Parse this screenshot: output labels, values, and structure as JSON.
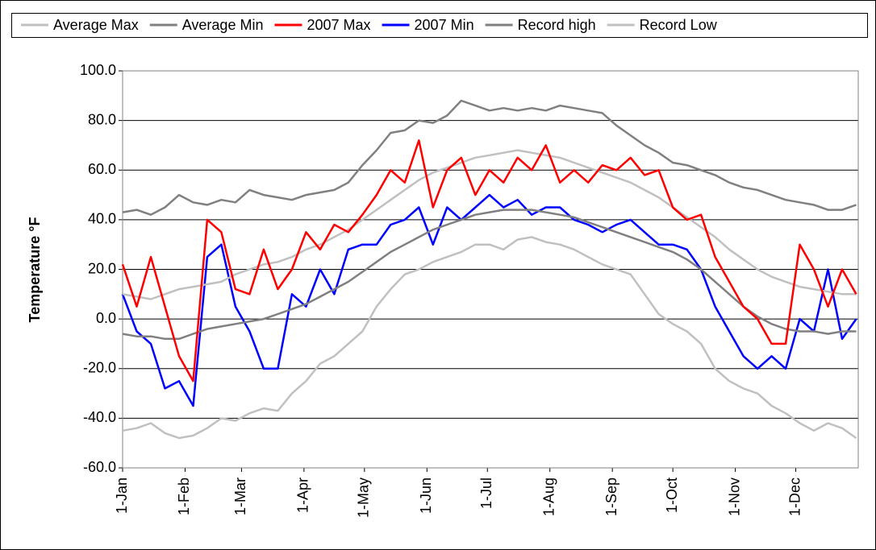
{
  "chart_data": {
    "type": "line",
    "y_label": "Temperature °F",
    "x": [
      0,
      7,
      14,
      21,
      28,
      35,
      42,
      49,
      56,
      63,
      70,
      77,
      84,
      91,
      98,
      105,
      112,
      119,
      126,
      133,
      140,
      147,
      154,
      161,
      168,
      175,
      182,
      189,
      196,
      203,
      210,
      217,
      224,
      231,
      238,
      245,
      252,
      259,
      266,
      273,
      280,
      287,
      294,
      301,
      308,
      315,
      322,
      329,
      336,
      343,
      350,
      357,
      364
    ],
    "xlim": [
      0,
      365
    ],
    "xticks": [
      {
        "value": 0,
        "label": "1-Jan"
      },
      {
        "value": 31,
        "label": "1-Feb"
      },
      {
        "value": 59,
        "label": "1-Mar"
      },
      {
        "value": 90,
        "label": "1-Apr"
      },
      {
        "value": 120,
        "label": "1-May"
      },
      {
        "value": 151,
        "label": "1-Jun"
      },
      {
        "value": 181,
        "label": "1-Jul"
      },
      {
        "value": 212,
        "label": "1-Aug"
      },
      {
        "value": 243,
        "label": "1-Sep"
      },
      {
        "value": 273,
        "label": "1-Oct"
      },
      {
        "value": 304,
        "label": "1-Nov"
      },
      {
        "value": 334,
        "label": "1-Dec"
      }
    ],
    "ylim": [
      -60,
      100
    ],
    "yticks": [
      {
        "value": -60,
        "label": "-60.0"
      },
      {
        "value": -40,
        "label": "-40.0"
      },
      {
        "value": -20,
        "label": "-20.0"
      },
      {
        "value": 0,
        "label": "0.0"
      },
      {
        "value": 20,
        "label": "20.0"
      },
      {
        "value": 40,
        "label": "40.0"
      },
      {
        "value": 60,
        "label": "60.0"
      },
      {
        "value": 80,
        "label": "80.0"
      },
      {
        "value": 100,
        "label": "100.0"
      }
    ],
    "grid": true,
    "legend": "top",
    "series": [
      {
        "name": "Average Max",
        "color": "#c0c0c0",
        "values": [
          10,
          9,
          8,
          10,
          12,
          13,
          14,
          15,
          18,
          20,
          22,
          23,
          25,
          28,
          30,
          33,
          36,
          40,
          44,
          48,
          52,
          56,
          59,
          61,
          63,
          65,
          66,
          67,
          68,
          67,
          66,
          65,
          63,
          61,
          59,
          57,
          55,
          52,
          49,
          45,
          41,
          37,
          33,
          28,
          24,
          20,
          17,
          15,
          13,
          12,
          11,
          10,
          10
        ]
      },
      {
        "name": "Average Min",
        "color": "#808080",
        "values": [
          -6,
          -7,
          -7,
          -8,
          -8,
          -6,
          -4,
          -3,
          -2,
          -1,
          0,
          2,
          4,
          6,
          9,
          12,
          15,
          19,
          23,
          27,
          30,
          33,
          36,
          38,
          40,
          42,
          43,
          44,
          44,
          44,
          43,
          42,
          41,
          39,
          37,
          35,
          33,
          31,
          29,
          27,
          24,
          20,
          15,
          10,
          5,
          1,
          -2,
          -4,
          -5,
          -5,
          -6,
          -5,
          -5
        ]
      },
      {
        "name": "2007 Max",
        "color": "#ff0000",
        "values": [
          22,
          5,
          25,
          5,
          -15,
          -25,
          40,
          35,
          12,
          10,
          28,
          12,
          20,
          35,
          28,
          38,
          35,
          42,
          50,
          60,
          55,
          72,
          45,
          60,
          65,
          50,
          60,
          55,
          65,
          60,
          70,
          55,
          60,
          55,
          62,
          60,
          65,
          58,
          60,
          45,
          40,
          42,
          25,
          15,
          5,
          0,
          -10,
          -10,
          30,
          20,
          5,
          20,
          10
        ]
      },
      {
        "name": "2007 Min",
        "color": "#0000ff",
        "values": [
          10,
          -5,
          -10,
          -28,
          -25,
          -35,
          25,
          30,
          5,
          -5,
          -20,
          -20,
          10,
          5,
          20,
          10,
          28,
          30,
          30,
          38,
          40,
          45,
          30,
          45,
          40,
          45,
          50,
          45,
          48,
          42,
          45,
          45,
          40,
          38,
          35,
          38,
          40,
          35,
          30,
          30,
          28,
          20,
          5,
          -5,
          -15,
          -20,
          -15,
          -20,
          0,
          -5,
          20,
          -8,
          0
        ]
      },
      {
        "name": "Record high",
        "color": "#808080",
        "values": [
          43,
          44,
          42,
          45,
          50,
          47,
          46,
          48,
          47,
          52,
          50,
          49,
          48,
          50,
          51,
          52,
          55,
          62,
          68,
          75,
          76,
          80,
          79,
          82,
          88,
          86,
          84,
          85,
          84,
          85,
          84,
          86,
          85,
          84,
          83,
          78,
          74,
          70,
          67,
          63,
          62,
          60,
          58,
          55,
          53,
          52,
          50,
          48,
          47,
          46,
          44,
          44,
          46
        ]
      },
      {
        "name": "Record Low",
        "color": "#c0c0c0",
        "values": [
          -45,
          -44,
          -42,
          -46,
          -48,
          -47,
          -44,
          -40,
          -41,
          -38,
          -36,
          -37,
          -30,
          -25,
          -18,
          -15,
          -10,
          -5,
          5,
          12,
          18,
          20,
          23,
          25,
          27,
          30,
          30,
          28,
          32,
          33,
          31,
          30,
          28,
          25,
          22,
          20,
          18,
          10,
          2,
          -2,
          -5,
          -10,
          -20,
          -25,
          -28,
          -30,
          -35,
          -38,
          -42,
          -45,
          -42,
          -44,
          -48
        ]
      }
    ]
  }
}
